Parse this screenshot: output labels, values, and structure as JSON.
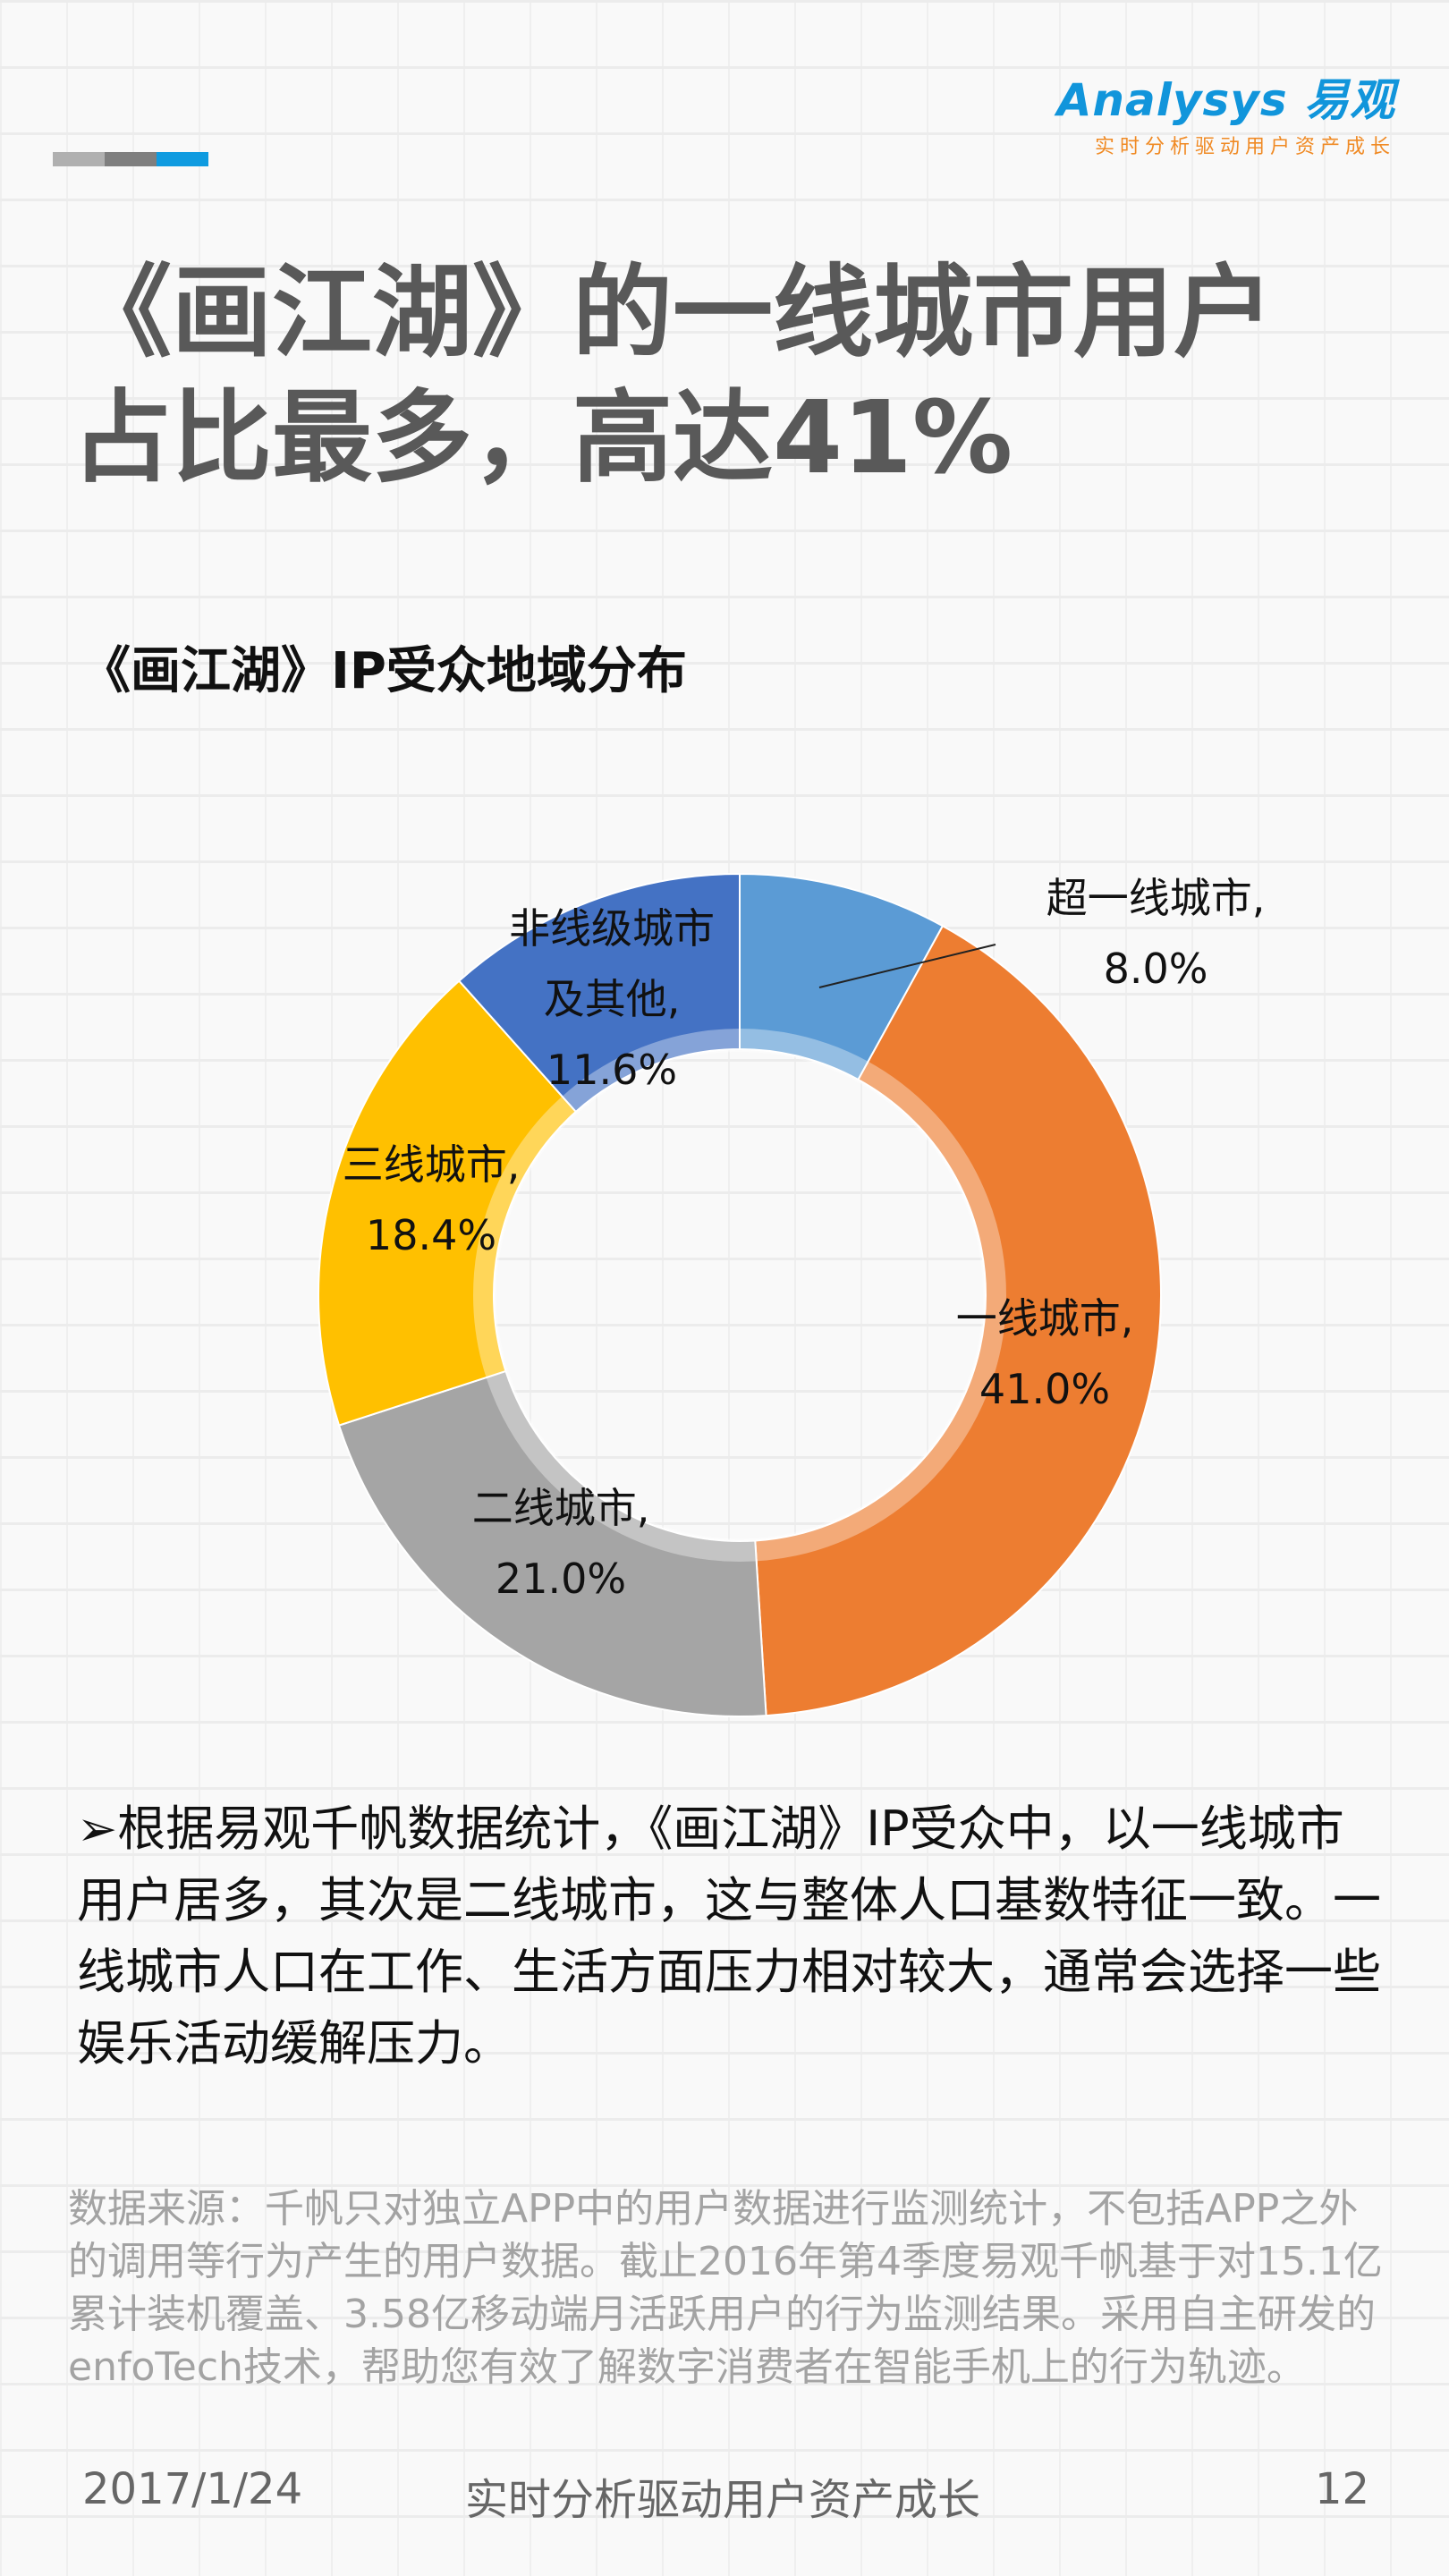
{
  "header": {
    "brand": "Analysys 易观",
    "slogan": "实时分析驱动用户资产成长",
    "bar_colors": [
      "#b0b0b0",
      "#7f7f7f",
      "#0f9be0"
    ]
  },
  "title_lines": [
    "《画江湖》的一线城市用户",
    "占比最多，高达41%"
  ],
  "chart_data": {
    "type": "pie",
    "variant": "donut",
    "title": "《画江湖》IP受众地域分布",
    "categories": [
      "超一线城市",
      "一线城市",
      "二线城市",
      "三线城市",
      "非线级城市及其他"
    ],
    "values": [
      8.0,
      41.0,
      21.0,
      18.4,
      11.6
    ],
    "unit": "%",
    "colors": [
      "#5b9bd5",
      "#ed7d31",
      "#a5a5a5",
      "#ffc000",
      "#4472c4"
    ],
    "labels": [
      [
        "超一线城市,",
        "8.0%"
      ],
      [
        "一线城市,",
        "41.0%"
      ],
      [
        "二线城市,",
        "21.0%"
      ],
      [
        "三线城市,",
        "18.4%"
      ],
      [
        "非线级城市",
        "及其他,",
        "11.6%"
      ]
    ]
  },
  "body_text": "➢根据易观千帆数据统计，《画江湖》IP受众中，以一线城市用户居多，其次是二线城市，这与整体人口基数特征一致。一线城市人口在工作、生活方面压力相对较大，通常会选择一些娱乐活动缓解压力。",
  "source_note": "数据来源：千帆只对独立APP中的用户数据进行监测统计，不包括APP之外的调用等行为产生的用户数据。截止2016年第4季度易观千帆基于对15.1亿累计装机覆盖、3.58亿移动端月活跃用户的行为监测结果。采用自主研发的enfoTech技术，帮助您有效了解数字消费者在智能手机上的行为轨迹。",
  "footer": {
    "date": "2017/1/24",
    "slogan": "实时分析驱动用户资产成长",
    "page": "12"
  }
}
